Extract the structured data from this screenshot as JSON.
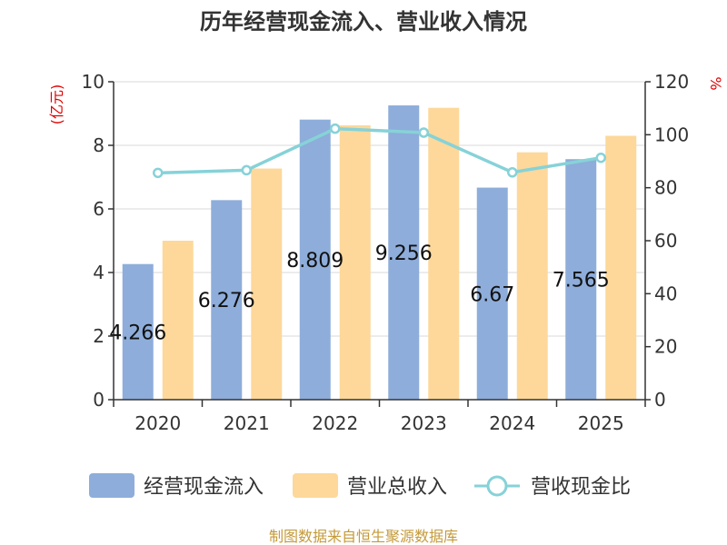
{
  "chart_data": {
    "type": "bar",
    "title": "历年经营现金流入、营业收入情况",
    "categories": [
      "2020",
      "2021",
      "2022",
      "2023",
      "2024",
      "2025"
    ],
    "left_axis": {
      "unit": "(亿元)",
      "range": [
        0,
        10
      ],
      "ticks": [
        "0",
        "2",
        "4",
        "6",
        "8",
        "10"
      ]
    },
    "right_axis": {
      "unit": "%",
      "range": [
        0,
        120
      ],
      "ticks": [
        "0",
        "20",
        "40",
        "60",
        "80",
        "100",
        "120"
      ]
    },
    "series": [
      {
        "name": "经营现金流入",
        "type": "bar",
        "axis": "left",
        "color": "#8eadda",
        "values": [
          4.266,
          6.276,
          8.809,
          9.256,
          6.67,
          7.565
        ],
        "labels": [
          "4.266",
          "6.276",
          "8.809",
          "9.256",
          "6.67",
          "7.565"
        ]
      },
      {
        "name": "营业总收入",
        "type": "bar",
        "axis": "left",
        "color": "#fdd89a",
        "values": [
          5.0,
          7.27,
          8.63,
          9.18,
          7.78,
          8.3
        ]
      },
      {
        "name": "营收现金比",
        "type": "line",
        "axis": "right",
        "color": "#86d2d8",
        "values": [
          85.6,
          86.6,
          102.3,
          100.8,
          85.8,
          91.3
        ]
      }
    ],
    "grid": true,
    "legend_position": "bottom",
    "source": "制图数据来自恒生聚源数据库"
  }
}
